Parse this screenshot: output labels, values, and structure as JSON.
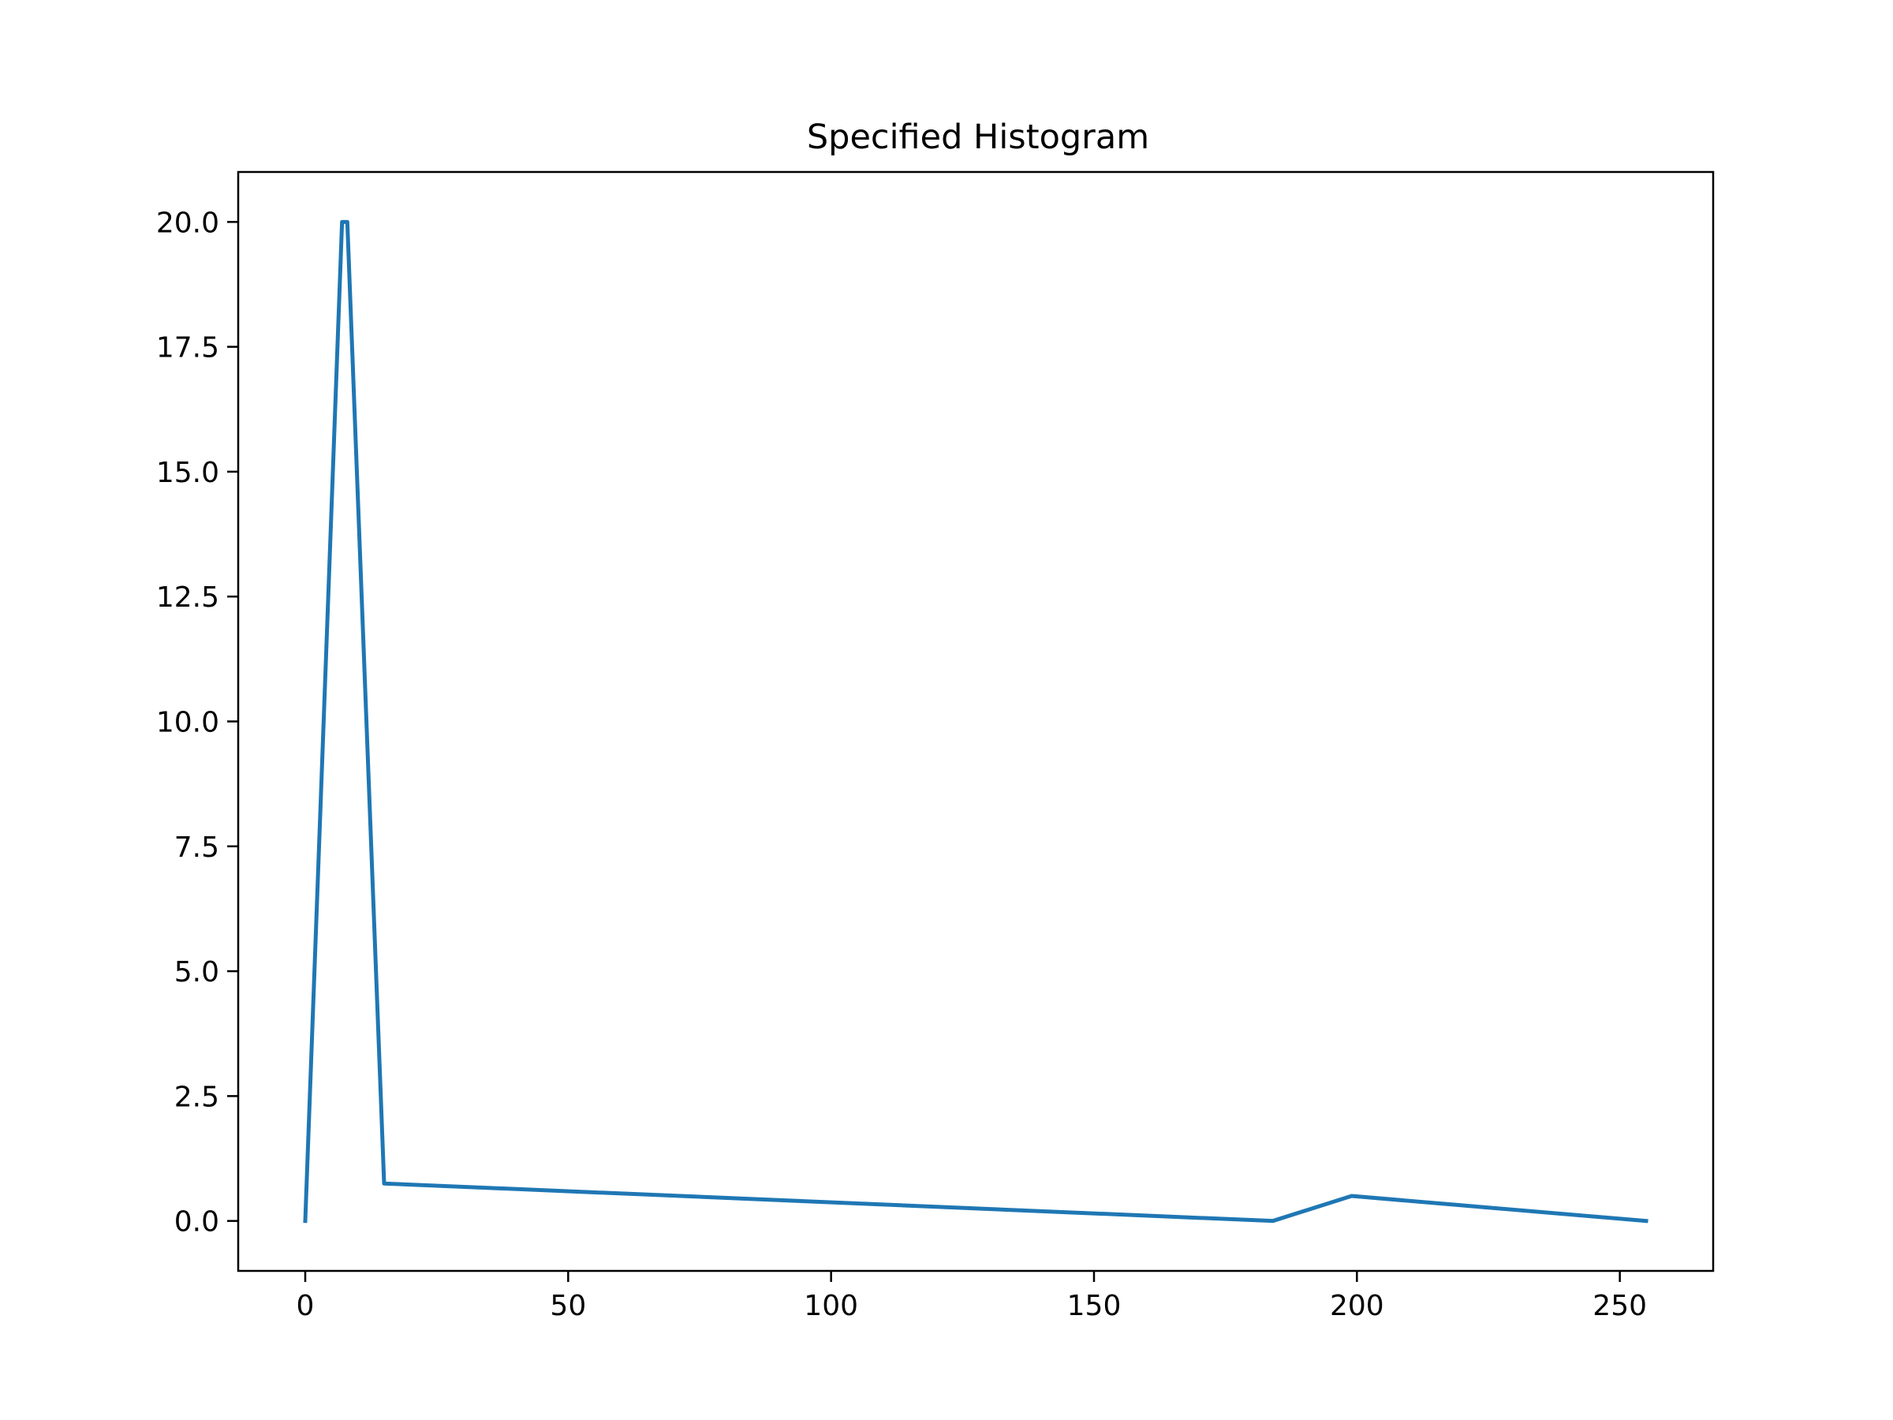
{
  "chart_data": {
    "type": "line",
    "title": "Specified Histogram",
    "xlabel": "",
    "ylabel": "",
    "xlim": [
      -12.75,
      267.75
    ],
    "ylim": [
      -1.0,
      21.0
    ],
    "x_ticks": [
      0,
      50,
      100,
      150,
      200,
      250
    ],
    "x_tick_labels": [
      "0",
      "50",
      "100",
      "150",
      "200",
      "250"
    ],
    "y_ticks": [
      0.0,
      2.5,
      5.0,
      7.5,
      10.0,
      12.5,
      15.0,
      17.5,
      20.0
    ],
    "y_tick_labels": [
      "0.0",
      "2.5",
      "5.0",
      "7.5",
      "10.0",
      "12.5",
      "15.0",
      "17.5",
      "20.0"
    ],
    "grid": false,
    "series": [
      {
        "color": "#1f77b4",
        "x": [
          0,
          7,
          8,
          15,
          184,
          199,
          255
        ],
        "y": [
          0,
          20,
          20,
          0.75,
          0,
          0.5,
          0
        ]
      }
    ]
  }
}
